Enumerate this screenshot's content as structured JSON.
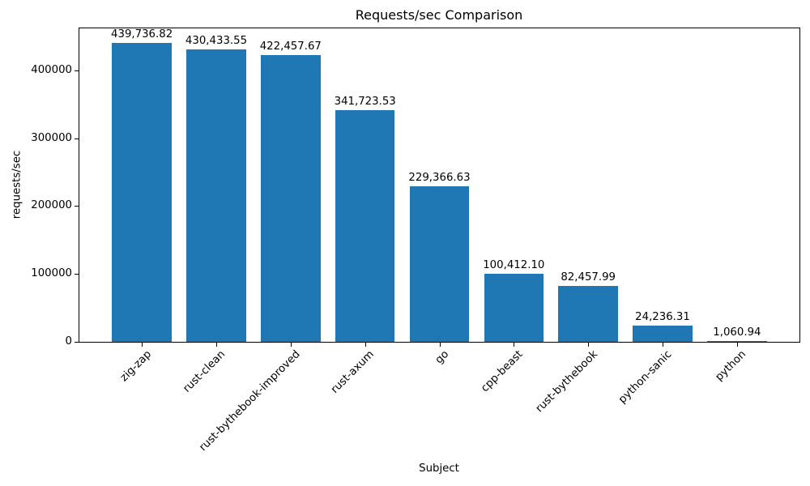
{
  "chart_data": {
    "type": "bar",
    "title": "Requests/sec Comparison",
    "xlabel": "Subject",
    "ylabel": "requests/sec",
    "categories": [
      "zig-zap",
      "rust-clean",
      "rust-bythebook-improved",
      "rust-axum",
      "go",
      "cpp-beast",
      "rust-bythebook",
      "python-sanic",
      "python"
    ],
    "values": [
      439736.82,
      430433.55,
      422457.67,
      341723.53,
      229366.63,
      100412.1,
      82457.99,
      24236.31,
      1060.94
    ],
    "value_labels": [
      "439,736.82",
      "430,433.55",
      "422,457.67",
      "341,723.53",
      "229,366.63",
      "100,412.10",
      "82,457.99",
      "24,236.31",
      "1,060.94"
    ],
    "yticks": [
      0,
      100000,
      200000,
      300000,
      400000
    ],
    "ytick_labels": [
      "0",
      "100000",
      "200000",
      "300000",
      "400000"
    ],
    "ylim": [
      0,
      461723
    ],
    "bar_color": "#1f77b4",
    "axis_color": "#000000",
    "background_color": "#ffffff",
    "grid": false,
    "legend": null,
    "x_label_rotation_deg": 45
  }
}
